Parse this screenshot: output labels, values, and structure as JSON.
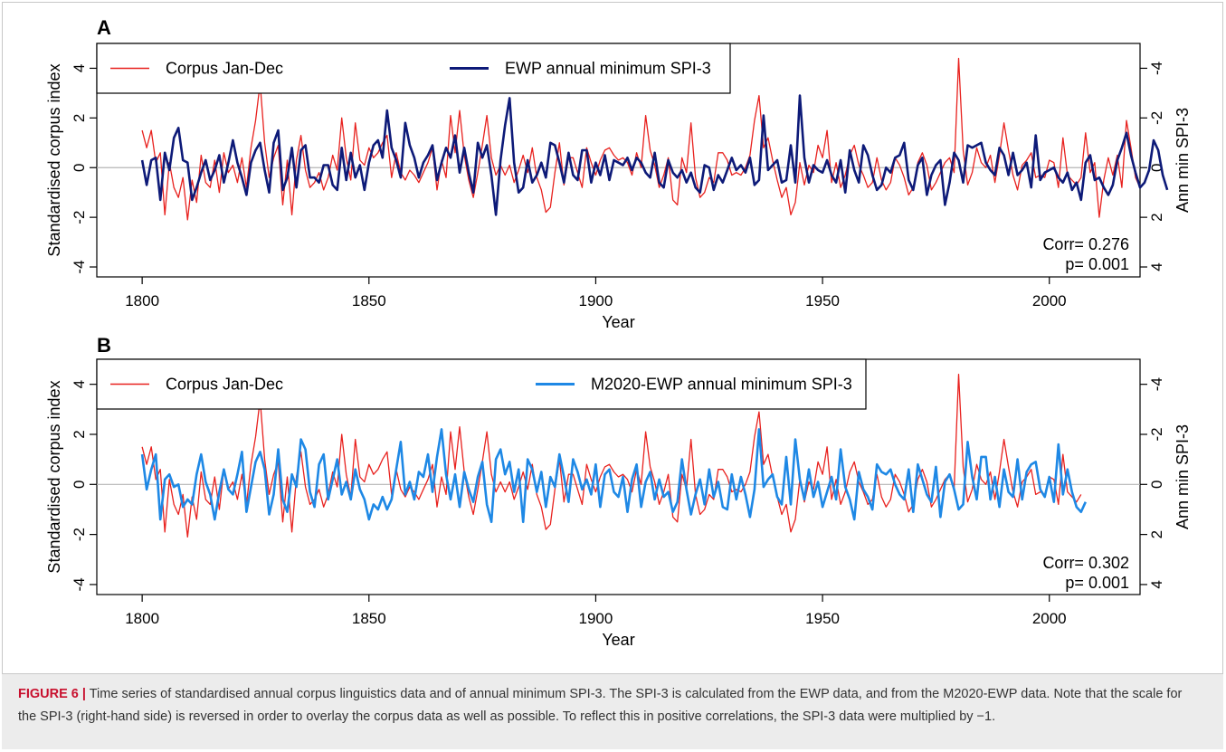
{
  "figure": {
    "caption_label": "FIGURE 6 |",
    "caption_text": " Time series of standardised annual corpus linguistics data and of annual minimum SPI-3. The SPI-3 is calculated from the EWP data, and from the M2020-EWP data. Note that the scale for the SPI-3 (right-hand side) is reversed in order to overlay the corpus data as well as possible. To reflect this in positive correlations, the SPI-3 data were multiplied by −1."
  },
  "colors": {
    "corpus": "#e8211e",
    "ewp": "#0d1a78",
    "m2020": "#1e88e5",
    "zero_line": "#b4b4b4"
  },
  "chart_data": [
    {
      "panel": "A",
      "type": "line",
      "xlabel": "Year",
      "ylabel": "Standardised corpus index",
      "ylabel_right": "Ann min SPI-3",
      "xlim": [
        1790,
        2020
      ],
      "ylim": [
        -4.4,
        5.0
      ],
      "x_ticks": [
        "1800",
        "1850",
        "1900",
        "1950",
        "2000"
      ],
      "y_ticks": [
        "-4",
        "-2",
        "0",
        "2",
        "4"
      ],
      "y_ticks_right": [
        "4",
        "2",
        "0",
        "-2",
        "-4"
      ],
      "corr_text": "Corr= 0.276",
      "p_text": "p= 0.001",
      "series": [
        {
          "name": "Corpus Jan-Dec",
          "color": "#e8211e",
          "x_start": 1800,
          "values": [
            1.5,
            0.8,
            1.5,
            0.2,
            0.6,
            -1.9,
            0.2,
            -0.8,
            -1.2,
            -0.4,
            -2.1,
            -0.5,
            -1.4,
            0.5,
            -0.6,
            -0.8,
            0.3,
            -1.0,
            0.6,
            -0.2,
            0.1,
            -0.6,
            0.4,
            -0.8,
            0.8,
            1.9,
            3.4,
            1.0,
            -0.4,
            0.4,
            0.9,
            -1.5,
            0.3,
            -1.9,
            0.3,
            1.3,
            -0.1,
            -0.8,
            -0.6,
            -0.2,
            -0.9,
            -0.4,
            0.5,
            -0.1,
            2.0,
            0.4,
            -0.5,
            1.8,
            0.3,
            0.1,
            0.8,
            0.4,
            0.6,
            1.0,
            1.3,
            -0.4,
            0.6,
            -0.2,
            -0.5,
            -0.1,
            -0.3,
            -0.6,
            -0.2,
            0.2,
            0.8,
            -0.9,
            0.3,
            -0.4,
            2.1,
            0.6,
            2.3,
            0.5,
            -0.5,
            -1.2,
            -0.2,
            0.9,
            2.1,
            0.4,
            -0.3,
            0.1,
            -0.3,
            0.1,
            -0.6,
            -0.1,
            0.5,
            -0.2,
            0.8,
            -0.4,
            -0.9,
            -1.8,
            -1.6,
            -0.2,
            1.0,
            -0.7,
            0.4,
            0.4,
            -0.2,
            -0.8,
            0.8,
            0.2,
            -0.3,
            0.3,
            0.7,
            0.8,
            0.5,
            0.3,
            0.4,
            0.2,
            -0.3,
            0.6,
            0.0,
            2.1,
            0.7,
            0.1,
            -0.8,
            -0.3,
            0.4,
            -1.3,
            -1.5,
            0.4,
            -0.2,
            1.8,
            -0.4,
            -1.2,
            -1.0,
            -0.4,
            -0.6,
            0.6,
            0.6,
            0.3,
            -0.3,
            -0.2,
            -0.3,
            0.0,
            0.5,
            1.9,
            2.9,
            0.8,
            1.2,
            0.3,
            -0.5,
            -1.2,
            -0.8,
            -1.9,
            -1.4,
            0.2,
            -0.7,
            0.1,
            -0.2,
            0.9,
            0.4,
            1.5,
            -0.6,
            0.2,
            -0.8,
            -0.3,
            0.5,
            0.9,
            0.1,
            -0.3,
            -0.8,
            -0.6,
            0.4,
            -0.5,
            -0.9,
            -0.6,
            0.4,
            0.1,
            -0.4,
            -1.1,
            -0.8,
            0.2,
            0.6,
            0.1,
            -0.9,
            -0.6,
            -0.2,
            0.2,
            0.4,
            -0.2,
            4.4,
            0.7,
            -0.7,
            -0.2,
            0.8,
            0.2,
            0.0,
            0.5,
            -0.6,
            0.5,
            1.8,
            0.7,
            -0.3,
            -0.9,
            0.1,
            0.3,
            0.6,
            -0.4,
            -0.3,
            -0.4,
            0.3,
            0.2,
            -0.8,
            1.2,
            -0.3,
            -0.5,
            -0.7,
            -0.4,
            1.4,
            -0.2,
            0.2,
            -2.0,
            -0.5,
            0.4,
            -0.3,
            0.5,
            -0.8,
            1.9,
            0.8,
            -0.4,
            -0.8
          ]
        },
        {
          "name": "EWP annual minimum SPI-3",
          "color": "#0d1a78",
          "x_start": 1800,
          "values": [
            0.3,
            -0.7,
            0.3,
            0.4,
            -1.3,
            0.6,
            -0.1,
            1.2,
            1.6,
            0.3,
            0.2,
            -1.3,
            -0.8,
            -0.2,
            0.3,
            -0.5,
            -0.1,
            0.5,
            -0.6,
            0.2,
            1.1,
            0.2,
            -0.4,
            -1.1,
            0.2,
            0.7,
            1.0,
            -0.1,
            -1.0,
            1.0,
            1.5,
            -0.9,
            -0.4,
            0.8,
            -0.8,
            0.7,
            0.9,
            -0.4,
            -0.4,
            -0.6,
            0.1,
            0.1,
            -0.7,
            -0.9,
            0.8,
            -0.5,
            0.6,
            -0.4,
            0.1,
            -0.9,
            0.2,
            0.9,
            1.1,
            0.4,
            2.3,
            0.8,
            0.3,
            -0.4,
            1.8,
            0.9,
            0.4,
            -0.4,
            0.2,
            0.5,
            0.9,
            -0.5,
            0.2,
            0.8,
            0.4,
            1.3,
            -0.2,
            0.8,
            -0.2,
            -1.0,
            1.0,
            0.4,
            0.9,
            -0.3,
            -1.9,
            0.3,
            1.7,
            2.8,
            0.2,
            -1.0,
            -0.8,
            0.3,
            -0.6,
            -0.3,
            0.2,
            -0.4,
            1.0,
            0.9,
            0.2,
            -0.6,
            0.6,
            -0.3,
            -0.5,
            0.7,
            0.7,
            -0.6,
            0.2,
            -0.3,
            0.5,
            -0.5,
            0.3,
            0.2,
            0.1,
            0.4,
            -0.1,
            0.4,
            0.2,
            -0.2,
            -0.4,
            0.6,
            -0.6,
            -0.8,
            0.3,
            -0.2,
            -0.4,
            -0.1,
            -0.6,
            -0.2,
            -0.8,
            -1.0,
            0.1,
            0.0,
            -0.9,
            -0.3,
            -0.6,
            -0.1,
            0.4,
            -0.1,
            0.1,
            -0.2,
            0.4,
            -0.7,
            -0.5,
            2.1,
            -0.1,
            0.1,
            0.3,
            -0.6,
            -0.5,
            0.9,
            -0.6,
            2.9,
            0.4,
            -0.6,
            0.1,
            -0.1,
            -0.2,
            0.3,
            -0.3,
            -0.6,
            0.3,
            -1.0,
            0.7,
            -0.1,
            -0.6,
            0.9,
            0.5,
            -0.3,
            -0.9,
            -0.7,
            0.0,
            -0.2,
            0.4,
            0.5,
            1.0,
            -0.5,
            -0.9,
            0.1,
            0.4,
            -1.1,
            -0.3,
            0.1,
            0.3,
            -1.5,
            -0.6,
            0.6,
            0.3,
            -0.6,
            0.9,
            0.8,
            0.9,
            1.0,
            0.2,
            -0.1,
            -0.3,
            0.8,
            0.5,
            -0.3,
            0.6,
            -0.3,
            -0.1,
            0.2,
            -0.8,
            1.3,
            -0.5,
            -0.2,
            -0.1,
            0.0,
            -0.4,
            -0.6,
            -0.2,
            -0.9,
            -0.6,
            -1.3,
            0.2,
            0.5,
            -0.5,
            -0.4,
            -0.8,
            -1.1,
            -0.7,
            0.3,
            0.8,
            1.4,
            0.5,
            -0.2,
            -0.8,
            -0.6,
            -0.1,
            1.1,
            0.7,
            -0.3,
            -0.9
          ]
        }
      ]
    },
    {
      "panel": "B",
      "type": "line",
      "xlabel": "Year",
      "ylabel": "Standardised corpus index",
      "ylabel_right": "Ann min SPI-3",
      "xlim": [
        1790,
        2020
      ],
      "ylim": [
        -4.4,
        5.0
      ],
      "x_ticks": [
        "1800",
        "1850",
        "1900",
        "1950",
        "2000"
      ],
      "y_ticks": [
        "-4",
        "-2",
        "0",
        "2",
        "4"
      ],
      "y_ticks_right": [
        "4",
        "2",
        "0",
        "-2",
        "-4"
      ],
      "corr_text": "Corr= 0.302",
      "p_text": "p= 0.001",
      "series": [
        {
          "name": "Corpus Jan-Dec",
          "color": "#e8211e",
          "x_start": 1800,
          "values": [
            1.5,
            0.8,
            1.5,
            0.2,
            0.6,
            -1.9,
            0.2,
            -0.8,
            -1.2,
            -0.4,
            -2.1,
            -0.5,
            -1.4,
            0.5,
            -0.6,
            -0.8,
            0.3,
            -1.0,
            0.6,
            -0.2,
            0.1,
            -0.6,
            0.4,
            -0.8,
            0.8,
            1.9,
            3.4,
            1.0,
            -0.4,
            0.4,
            0.9,
            -1.5,
            0.3,
            -1.9,
            0.3,
            1.3,
            -0.1,
            -0.8,
            -0.6,
            -0.2,
            -0.9,
            -0.4,
            0.5,
            -0.1,
            2.0,
            0.4,
            -0.5,
            1.8,
            0.3,
            0.1,
            0.8,
            0.4,
            0.6,
            1.0,
            1.3,
            -0.4,
            0.6,
            -0.2,
            -0.5,
            -0.1,
            -0.3,
            -0.6,
            -0.2,
            0.2,
            0.8,
            -0.9,
            0.3,
            -0.4,
            2.1,
            0.6,
            2.3,
            0.5,
            -0.5,
            -1.2,
            -0.2,
            0.9,
            2.1,
            0.4,
            -0.3,
            0.1,
            -0.3,
            0.1,
            -0.6,
            -0.1,
            0.5,
            -0.2,
            0.8,
            -0.4,
            -0.9,
            -1.8,
            -1.6,
            -0.2,
            1.0,
            -0.7,
            0.4,
            0.4,
            -0.2,
            -0.8,
            0.8,
            0.2,
            -0.3,
            0.3,
            0.7,
            0.8,
            0.5,
            0.3,
            0.4,
            0.2,
            -0.3,
            0.6,
            0.0,
            2.1,
            0.7,
            0.1,
            -0.8,
            -0.3,
            0.4,
            -1.3,
            -1.5,
            0.4,
            -0.2,
            1.8,
            -0.4,
            -1.2,
            -1.0,
            -0.4,
            -0.6,
            0.6,
            0.6,
            0.3,
            -0.3,
            -0.2,
            -0.3,
            0.0,
            0.5,
            1.9,
            2.9,
            0.8,
            1.2,
            0.3,
            -0.5,
            -1.2,
            -0.8,
            -1.9,
            -1.4,
            0.2,
            -0.7,
            0.1,
            -0.2,
            0.9,
            0.4,
            1.5,
            -0.6,
            0.2,
            -0.8,
            -0.3,
            0.5,
            0.9,
            0.1,
            -0.3,
            -0.8,
            -0.6,
            0.4,
            -0.5,
            -0.9,
            -0.6,
            0.4,
            0.1,
            -0.4,
            -1.1,
            -0.8,
            0.2,
            0.6,
            0.1,
            -0.9,
            -0.6,
            -0.2,
            0.2,
            0.4,
            -0.2,
            4.4,
            0.7,
            -0.7,
            -0.2,
            0.8,
            0.2,
            0.0,
            0.5,
            -0.6,
            0.5,
            1.8,
            0.7,
            -0.3,
            -0.9,
            0.1,
            0.3,
            0.6,
            -0.4,
            -0.3,
            -0.4,
            0.3,
            0.2,
            -0.8,
            1.2,
            -0.3,
            -0.5,
            -0.7,
            -0.4
          ]
        },
        {
          "name": "M2020-EWP annual minimum SPI-3",
          "color": "#1e88e5",
          "x_start": 1800,
          "values": [
            1.2,
            -0.2,
            0.6,
            1.2,
            -1.4,
            0.2,
            0.4,
            -0.1,
            0.0,
            -0.9,
            -0.6,
            -0.8,
            0.4,
            1.2,
            0.1,
            -0.4,
            -1.4,
            -0.3,
            0.6,
            -0.2,
            -0.4,
            0.4,
            1.3,
            -1.1,
            -0.1,
            0.9,
            1.3,
            0.6,
            -1.2,
            -0.4,
            1.4,
            -0.6,
            -1.1,
            0.4,
            -0.1,
            1.8,
            1.4,
            -0.3,
            -0.9,
            0.8,
            1.2,
            -0.6,
            0.2,
            1.0,
            -0.4,
            0.1,
            -0.6,
            0.6,
            -0.2,
            -0.6,
            -1.4,
            -0.8,
            -1.0,
            -0.5,
            -1.0,
            -0.6,
            0.6,
            1.7,
            -0.4,
            0.1,
            -0.6,
            0.5,
            0.3,
            1.2,
            -0.3,
            1.1,
            2.2,
            0.4,
            -0.6,
            0.4,
            -0.9,
            0.5,
            -0.2,
            -0.7,
            0.3,
            0.9,
            -0.8,
            -1.5,
            1.0,
            1.4,
            0.4,
            0.9,
            -0.3,
            0.6,
            -1.5,
            1.0,
            0.6,
            -0.3,
            0.5,
            -0.9,
            0.3,
            -0.1,
            1.2,
            0.3,
            -0.7,
            1.0,
            0.5,
            -0.2,
            0.2,
            -0.4,
            0.8,
            -0.9,
            0.4,
            0.6,
            -0.3,
            -0.5,
            0.3,
            -1.1,
            0.2,
            0.8,
            -0.9,
            0.1,
            0.5,
            -0.6,
            0.2,
            -0.5,
            -0.3,
            -1.1,
            -0.7,
            1.0,
            -0.2,
            -1.2,
            -0.4,
            0.2,
            -0.8,
            0.6,
            -0.5,
            0.1,
            -0.9,
            -1.0,
            0.4,
            -0.6,
            0.3,
            -0.4,
            -1.3,
            -0.2,
            2.2,
            -0.1,
            0.2,
            0.4,
            -0.5,
            -0.8,
            1.1,
            -0.8,
            1.8,
            0.2,
            -0.6,
            0.6,
            -0.5,
            0.1,
            -0.9,
            -0.3,
            0.3,
            -0.6,
            1.4,
            -0.1,
            -0.6,
            -1.4,
            0.5,
            -0.2,
            -0.5,
            -1.0,
            0.8,
            0.5,
            0.4,
            0.6,
            0.0,
            -0.4,
            -0.6,
            0.6,
            -1.1,
            0.8,
            0.2,
            -0.4,
            -0.7,
            0.7,
            -1.3,
            0.1,
            0.4,
            -0.2,
            -1.0,
            -0.8,
            1.7,
            0.3,
            -0.6,
            1.1,
            1.1,
            -0.6,
            0.3,
            -0.9,
            0.6,
            -0.3,
            -0.5,
            1.0,
            -0.6,
            0.5,
            0.8,
            0.9,
            -0.2,
            -0.5,
            0.3,
            -0.7,
            1.6,
            -0.4,
            0.6,
            -0.3,
            -0.9,
            -1.1,
            -0.7
          ]
        }
      ]
    }
  ]
}
